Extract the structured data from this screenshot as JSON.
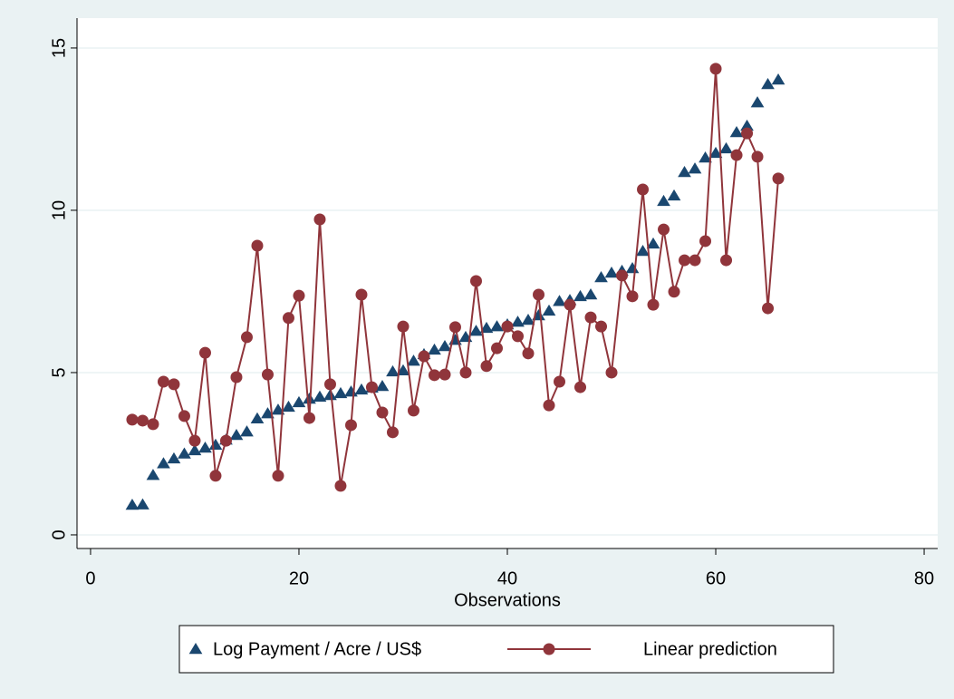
{
  "chart_data": {
    "type": "scatter",
    "x_label": "Observations",
    "x": [
      4,
      5,
      6,
      7,
      8,
      9,
      10,
      11,
      12,
      13,
      14,
      15,
      16,
      17,
      18,
      19,
      20,
      21,
      22,
      23,
      24,
      25,
      26,
      27,
      28,
      29,
      30,
      31,
      32,
      33,
      34,
      35,
      36,
      37,
      38,
      39,
      40,
      41,
      42,
      43,
      44,
      45,
      46,
      47,
      48,
      49,
      50,
      51,
      52,
      53,
      54,
      55,
      56,
      57,
      58,
      59,
      60,
      61,
      62,
      63,
      64,
      65,
      66
    ],
    "series": [
      {
        "name": "Log Payment / Acre / US$",
        "color": "#1a476f",
        "marker": "triangle",
        "line": false,
        "values": [
          0.92,
          0.93,
          1.84,
          2.2,
          2.35,
          2.5,
          2.6,
          2.68,
          2.77,
          2.93,
          3.07,
          3.18,
          3.58,
          3.74,
          3.85,
          3.94,
          4.08,
          4.19,
          4.25,
          4.3,
          4.36,
          4.41,
          4.47,
          4.53,
          4.58,
          5.03,
          5.06,
          5.36,
          5.56,
          5.7,
          5.81,
          6.0,
          6.09,
          6.28,
          6.37,
          6.42,
          6.48,
          6.56,
          6.62,
          6.76,
          6.9,
          7.2,
          7.23,
          7.35,
          7.4,
          7.93,
          8.07,
          8.13,
          8.21,
          8.74,
          8.97,
          10.28,
          10.45,
          11.17,
          11.28,
          11.62,
          11.76,
          11.9,
          12.4,
          12.6,
          13.32,
          13.88,
          14.02
        ]
      },
      {
        "name": "Linear prediction",
        "color": "#90353b",
        "marker": "circle",
        "line": true,
        "values": [
          3.55,
          3.52,
          3.41,
          4.72,
          4.64,
          3.66,
          2.9,
          5.61,
          1.82,
          2.9,
          4.86,
          6.09,
          8.91,
          4.94,
          1.82,
          6.68,
          7.37,
          3.6,
          9.72,
          4.64,
          1.51,
          3.38,
          7.4,
          4.55,
          3.77,
          3.16,
          6.42,
          3.83,
          5.5,
          4.92,
          4.94,
          6.4,
          5.0,
          7.82,
          5.2,
          5.75,
          6.42,
          6.12,
          5.59,
          7.4,
          3.99,
          4.72,
          7.09,
          4.55,
          6.7,
          6.42,
          5.0,
          7.99,
          7.35,
          10.64,
          7.09,
          9.41,
          7.49,
          8.46,
          8.46,
          9.05,
          14.36,
          8.46,
          11.7,
          12.37,
          11.65,
          6.98,
          10.98
        ]
      }
    ],
    "xlim": [
      -1.3,
      81.3
    ],
    "xticks": [
      0,
      20,
      40,
      60,
      80
    ],
    "ylim": [
      -0.42,
      15.92
    ],
    "yticks": [
      0,
      5,
      10,
      15
    ],
    "grid": true,
    "legend": "bottom"
  }
}
